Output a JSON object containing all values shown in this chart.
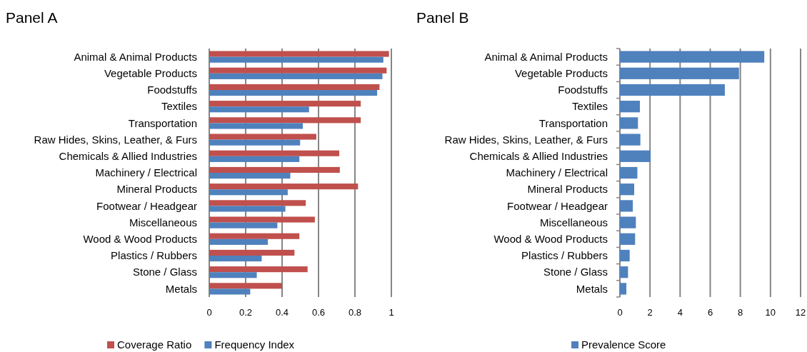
{
  "chart_data": [
    {
      "type": "bar",
      "orientation": "horizontal",
      "title": "Panel A",
      "categories": [
        "Animal & Animal Products",
        "Vegetable Products",
        "Foodstuffs",
        "Textiles",
        "Transportation",
        "Raw Hides, Skins, Leather, & Furs",
        "Chemicals & Allied Industries",
        "Machinery / Electrical",
        "Mineral Products",
        "Footwear / Headgear",
        "Miscellaneous",
        "Wood & Wood Products",
        "Plastics / Rubbers",
        "Stone / Glass",
        "Metals"
      ],
      "series": [
        {
          "name": "Coverage Ratio",
          "color": "#c0504d",
          "values": [
            0.987,
            0.974,
            0.935,
            0.832,
            0.832,
            0.588,
            0.714,
            0.717,
            0.817,
            0.53,
            0.58,
            0.495,
            0.468,
            0.54,
            0.4
          ]
        },
        {
          "name": "Frequency Index",
          "color": "#4f81bd",
          "values": [
            0.956,
            0.951,
            0.922,
            0.548,
            0.514,
            0.499,
            0.495,
            0.445,
            0.431,
            0.418,
            0.374,
            0.322,
            0.288,
            0.261,
            0.225
          ]
        }
      ],
      "xlim": [
        0,
        1
      ],
      "xticks": [
        0,
        0.2,
        0.4,
        0.6,
        0.8,
        1
      ],
      "grid": "x",
      "legend": "bottom"
    },
    {
      "type": "bar",
      "orientation": "horizontal",
      "title": "Panel B",
      "categories": [
        "Animal & Animal Products",
        "Vegetable Products",
        "Foodstuffs",
        "Textiles",
        "Transportation",
        "Raw Hides, Skins, Leather, & Furs",
        "Chemicals & Allied Industries",
        "Machinery / Electrical",
        "Mineral Products",
        "Footwear / Headgear",
        "Miscellaneous",
        "Wood & Wood Products",
        "Plastics / Rubbers",
        "Stone / Glass",
        "Metals"
      ],
      "series": [
        {
          "name": "Prevalence Score",
          "color": "#4f81bd",
          "values": [
            9.59,
            7.91,
            6.97,
            1.33,
            1.2,
            1.36,
            2.04,
            1.16,
            0.95,
            0.86,
            1.06,
            1.01,
            0.65,
            0.54,
            0.43
          ]
        }
      ],
      "xlim": [
        0,
        12
      ],
      "xticks": [
        0,
        2,
        4,
        6,
        8,
        10,
        12
      ],
      "grid": "x",
      "legend": "bottom"
    }
  ]
}
